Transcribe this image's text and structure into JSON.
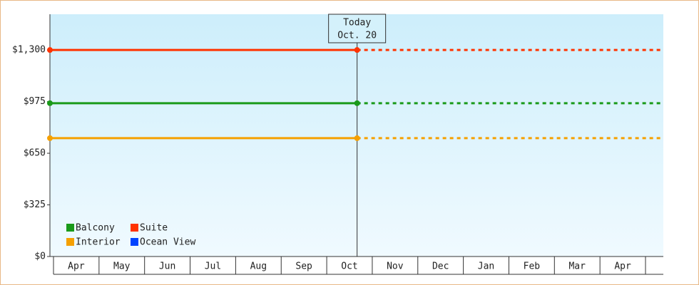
{
  "chart_data": {
    "type": "line",
    "categories": [
      "Apr",
      "May",
      "Jun",
      "Jul",
      "Aug",
      "Sep",
      "Oct",
      "Nov",
      "Dec",
      "Jan",
      "Feb",
      "Mar",
      "Apr"
    ],
    "series": [
      {
        "name": "Balcony",
        "color": "#1a9a1a",
        "values": [
          965,
          965,
          965,
          965,
          965,
          965,
          965,
          965,
          965,
          965,
          965,
          965,
          965
        ]
      },
      {
        "name": "Suite",
        "color": "#ff3300",
        "values": [
          1300,
          1300,
          1300,
          1300,
          1300,
          1300,
          1300,
          1300,
          1300,
          1300,
          1300,
          1300,
          1300
        ]
      },
      {
        "name": "Interior",
        "color": "#f5a000",
        "values": [
          745,
          745,
          745,
          745,
          745,
          745,
          745,
          745,
          745,
          745,
          745,
          745,
          745
        ]
      },
      {
        "name": "Ocean View",
        "color": "#0044ff",
        "values": [
          null,
          null,
          null,
          null,
          null,
          null,
          null,
          null,
          null,
          null,
          null,
          null,
          null
        ]
      }
    ],
    "today": {
      "label": "Today",
      "date": "Oct. 20"
    },
    "ylim": [
      0,
      1525
    ],
    "yticks": [
      {
        "value": 0,
        "label": "$0"
      },
      {
        "value": 325,
        "label": "$325"
      },
      {
        "value": 650,
        "label": "$650"
      },
      {
        "value": 975,
        "label": "$975"
      },
      {
        "value": 1300,
        "label": "$1,300"
      }
    ],
    "legend": "lower left"
  }
}
